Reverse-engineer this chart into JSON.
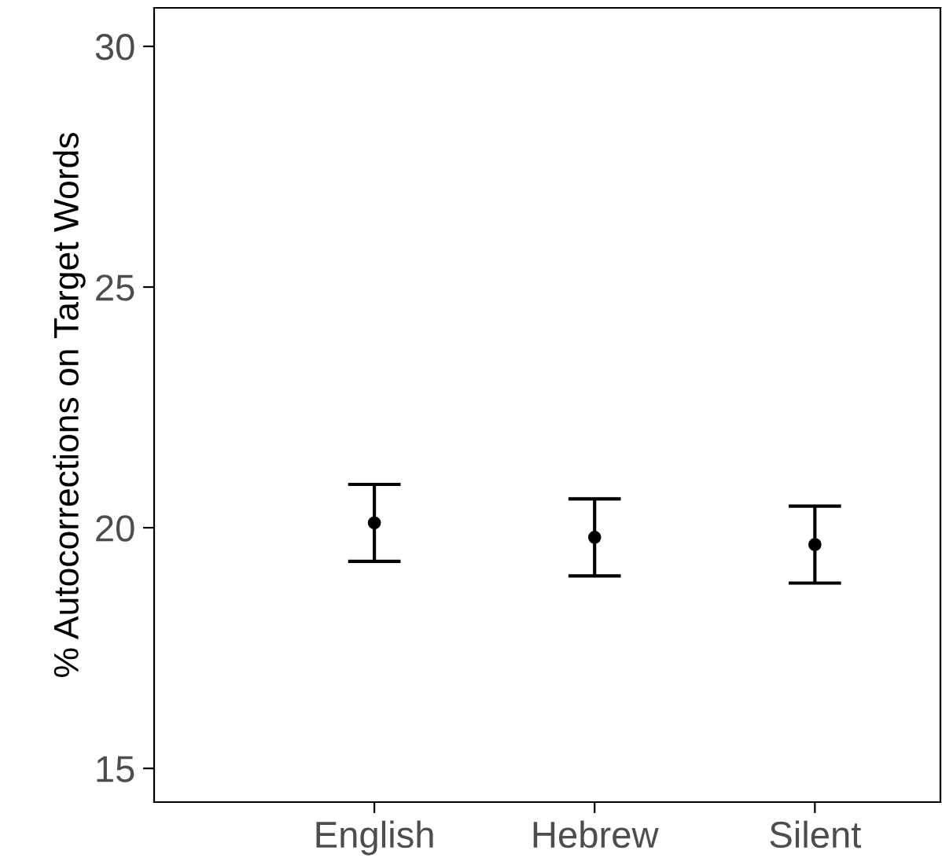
{
  "chart_data": {
    "type": "scatter",
    "ylabel": "% Autocorrections on Target Words",
    "categories": [
      null,
      "English",
      "Hebrew",
      "Silent"
    ],
    "values": [
      null,
      20.1,
      19.8,
      19.65
    ],
    "errors": [
      null,
      [
        19.3,
        20.9
      ],
      [
        19.0,
        20.6
      ],
      [
        18.85,
        20.45
      ]
    ],
    "color": "#000000",
    "marker": "circle",
    "grid": false,
    "legend": false,
    "ylim": [
      14.3,
      30.8
    ],
    "yticks": [
      15,
      20,
      25,
      30
    ]
  }
}
